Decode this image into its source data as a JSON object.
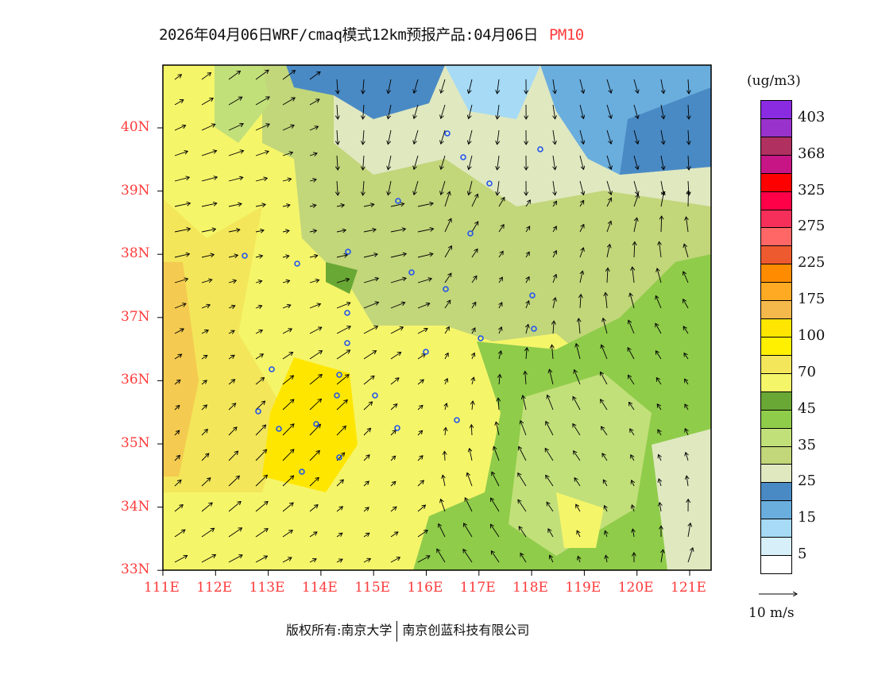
{
  "title": {
    "main": "2026年04月06日WRF/cmaq模式12km预报产品:04月06日",
    "variable": "PM10"
  },
  "map": {
    "lat_ticks": [
      "40N",
      "39N",
      "38N",
      "37N",
      "36N",
      "35N",
      "34N",
      "33N"
    ],
    "lon_ticks": [
      "111E",
      "112E",
      "113E",
      "114E",
      "115E",
      "116E",
      "117E",
      "118E",
      "119E",
      "120E",
      "121E"
    ],
    "lat_range": [
      33,
      40.8
    ],
    "lon_range": [
      111,
      121.4
    ]
  },
  "colorbar": {
    "unit": "(ug/m3)",
    "labels": [
      "403",
      "368",
      "325",
      "275",
      "225",
      "175",
      "100",
      "70",
      "45",
      "35",
      "25",
      "15",
      "5"
    ],
    "colors": [
      "#8a2be2",
      "#9932cc",
      "#b03060",
      "#c71585",
      "#ff0000",
      "#ff0048",
      "#f52f5a",
      "#ff6666",
      "#ee5a2f",
      "#ff8c00",
      "#ffaa22",
      "#f5b84a",
      "#ffe600",
      "#fff000",
      "#f3e65a",
      "#f5f56a",
      "#6aa835",
      "#8fcc4a",
      "#c2e07a",
      "#c2d67a",
      "#e0e8c0",
      "#4a8ac4",
      "#6aaede",
      "#a6daf5",
      "#d6eff8",
      "#ffffff"
    ]
  },
  "vector_legend": {
    "label": "10 m/s"
  },
  "copyright": {
    "left": "版权所有:南京大学",
    "right": "南京创蓝科技有限公司"
  }
}
